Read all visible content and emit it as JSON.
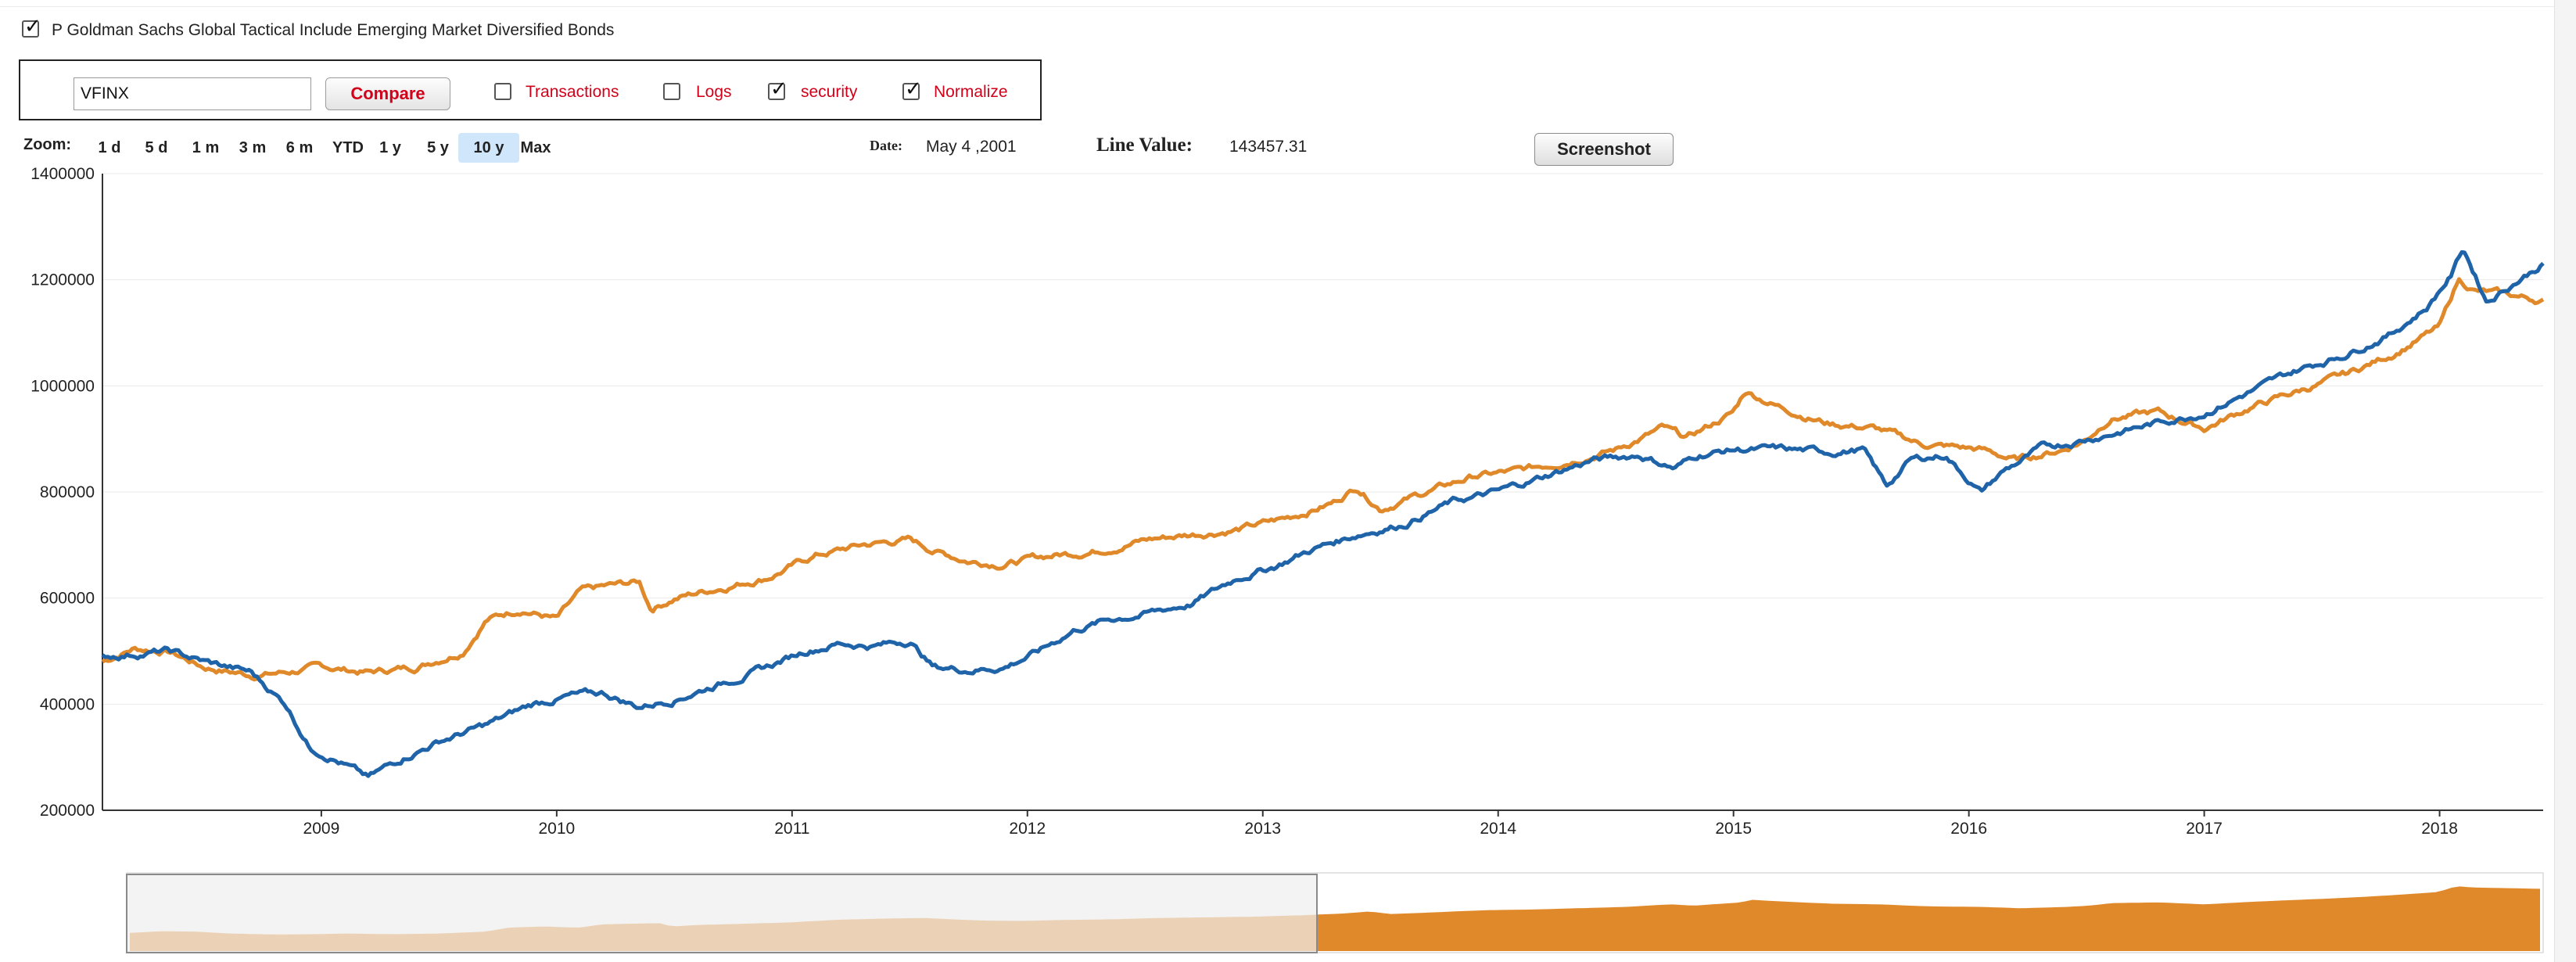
{
  "security": {
    "checked": true,
    "title": "P Goldman Sachs Global Tactical Include Emerging Market Diversified Bonds"
  },
  "compare_bar": {
    "ticker_value": "VFINX",
    "compare_label": "Compare",
    "options": [
      {
        "label": "Transactions",
        "checked": false
      },
      {
        "label": "Logs",
        "checked": false
      },
      {
        "label": "security",
        "checked": true
      },
      {
        "label": "Normalize",
        "checked": true
      }
    ]
  },
  "zoom": {
    "label": "Zoom:",
    "buttons": [
      "1 d",
      "5 d",
      "1 m",
      "3 m",
      "6 m",
      "YTD",
      "1 y",
      "5 y",
      "10 y",
      "Max"
    ],
    "active": "10 y"
  },
  "readout": {
    "date_label": "Date:",
    "date_value": "May 4 ,2001",
    "line_label": "Line Value:",
    "line_value": "143457.31"
  },
  "screenshot_label": "Screenshot",
  "colors": {
    "blue_series": "#1f63a8",
    "orange_series": "#e0892a",
    "accent_red": "#d0021b",
    "active_zoom": "#cfe6fb"
  },
  "chart_data": {
    "type": "line",
    "title": "",
    "xlabel": "",
    "ylabel": "",
    "ylim": [
      200000,
      1400000
    ],
    "yticks": [
      "1400000",
      "1200000",
      "1000000",
      "800000",
      "600000",
      "400000",
      "200000"
    ],
    "yticks_values": [
      1400000,
      1200000,
      1000000,
      800000,
      600000,
      400000,
      200000
    ],
    "xlim": [
      2008.07,
      2018.44
    ],
    "xticks": [
      "2009",
      "2010",
      "2011",
      "2012",
      "2013",
      "2014",
      "2015",
      "2016",
      "2017",
      "2018"
    ],
    "grid": "horizontal",
    "series": [
      {
        "color": "#1f63a8",
        "x": [
          2008.07,
          2008.2,
          2008.35,
          2008.5,
          2008.7,
          2008.85,
          2008.95,
          2009.05,
          2009.2,
          2009.35,
          2009.5,
          2009.7,
          2009.9,
          2010.05,
          2010.2,
          2010.35,
          2010.5,
          2010.7,
          2010.9,
          2011.05,
          2011.2,
          2011.35,
          2011.5,
          2011.6,
          2011.75,
          2011.9,
          2012.05,
          2012.2,
          2012.35,
          2012.5,
          2012.7,
          2012.9,
          2013.05,
          2013.2,
          2013.4,
          2013.6,
          2013.8,
          2014.0,
          2014.2,
          2014.4,
          2014.6,
          2014.75,
          2014.85,
          2015.0,
          2015.2,
          2015.4,
          2015.55,
          2015.65,
          2015.75,
          2015.9,
          2016.05,
          2016.15,
          2016.3,
          2016.5,
          2016.7,
          2016.9,
          2017.0,
          2017.2,
          2017.4,
          2017.6,
          2017.8,
          2017.95,
          2018.05,
          2018.1,
          2018.2,
          2018.3,
          2018.44
        ],
        "values": [
          490000,
          495000,
          500000,
          480000,
          460000,
          400000,
          320000,
          300000,
          260000,
          300000,
          330000,
          360000,
          400000,
          415000,
          420000,
          395000,
          410000,
          440000,
          470000,
          500000,
          515000,
          510000,
          520000,
          470000,
          465000,
          470000,
          500000,
          540000,
          560000,
          570000,
          590000,
          640000,
          660000,
          690000,
          720000,
          740000,
          780000,
          800000,
          830000,
          860000,
          870000,
          845000,
          870000,
          880000,
          880000,
          875000,
          880000,
          810000,
          860000,
          870000,
          800000,
          840000,
          880000,
          900000,
          920000,
          940000,
          950000,
          990000,
          1030000,
          1060000,
          1100000,
          1150000,
          1210000,
          1260000,
          1160000,
          1190000,
          1230000
        ]
      },
      {
        "color": "#e0892a",
        "x": [
          2008.07,
          2008.2,
          2008.35,
          2008.5,
          2008.7,
          2008.85,
          2009.0,
          2009.2,
          2009.4,
          2009.6,
          2009.7,
          2009.85,
          2010.0,
          2010.1,
          2010.2,
          2010.35,
          2010.4,
          2010.5,
          2010.7,
          2010.9,
          2011.1,
          2011.3,
          2011.5,
          2011.6,
          2011.75,
          2011.9,
          2012.1,
          2012.3,
          2012.5,
          2012.7,
          2012.9,
          2013.1,
          2013.3,
          2013.4,
          2013.5,
          2013.7,
          2013.9,
          2014.1,
          2014.3,
          2014.5,
          2014.7,
          2014.8,
          2015.0,
          2015.05,
          2015.2,
          2015.4,
          2015.6,
          2015.8,
          2016.05,
          2016.2,
          2016.4,
          2016.5,
          2016.6,
          2016.8,
          2017.0,
          2017.2,
          2017.4,
          2017.6,
          2017.8,
          2018.0,
          2018.08,
          2018.15,
          2018.3,
          2018.44
        ],
        "values": [
          480000,
          505000,
          500000,
          470000,
          455000,
          460000,
          470000,
          460000,
          470000,
          500000,
          560000,
          580000,
          560000,
          610000,
          620000,
          630000,
          580000,
          600000,
          620000,
          640000,
          680000,
          700000,
          710000,
          690000,
          670000,
          665000,
          680000,
          690000,
          710000,
          720000,
          730000,
          750000,
          780000,
          810000,
          770000,
          800000,
          830000,
          840000,
          860000,
          880000,
          920000,
          900000,
          950000,
          990000,
          960000,
          930000,
          920000,
          890000,
          880000,
          860000,
          880000,
          900000,
          940000,
          950000,
          920000,
          960000,
          990000,
          1020000,
          1060000,
          1110000,
          1200000,
          1180000,
          1170000,
          1160000
        ]
      }
    ]
  }
}
